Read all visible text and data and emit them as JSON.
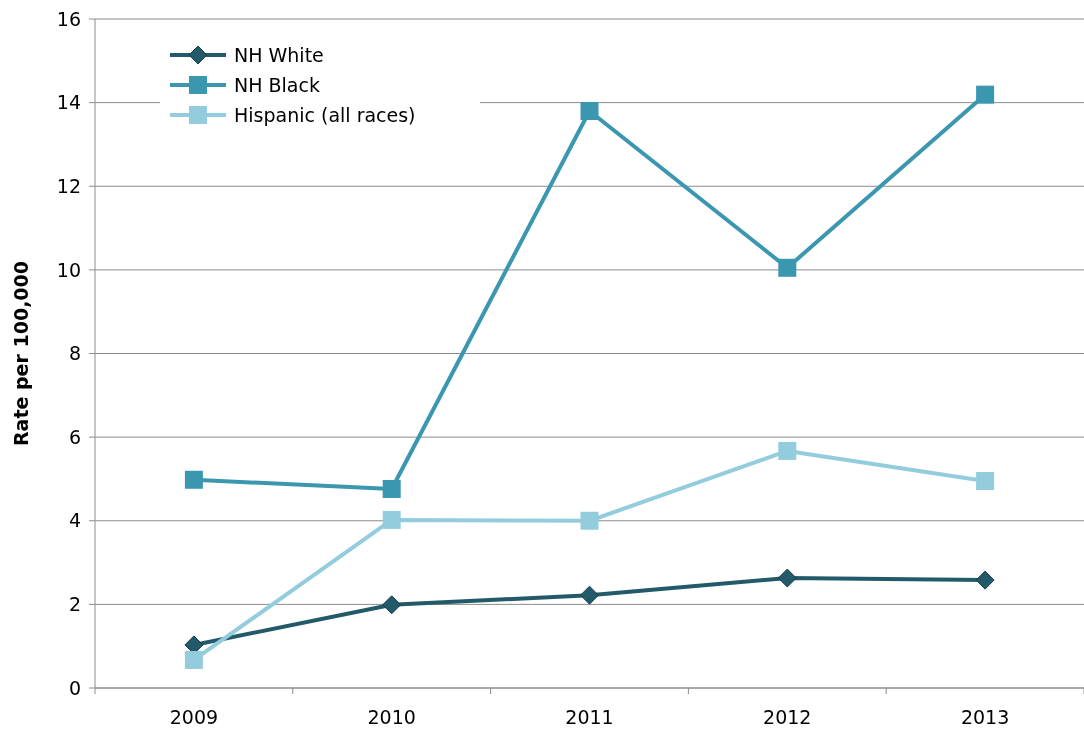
{
  "chart_data": {
    "type": "line",
    "ylabel": "Rate per 100,000",
    "categories": [
      "2009",
      "2010",
      "2011",
      "2012",
      "2013"
    ],
    "series": [
      {
        "name": "NH White",
        "color": "#235a6a",
        "values": [
          1.03,
          1.99,
          2.22,
          2.63,
          2.58
        ],
        "marker": "diamond"
      },
      {
        "name": "NH Black",
        "color": "#3b97b0",
        "values": [
          4.98,
          4.76,
          13.8,
          10.05,
          14.19
        ],
        "marker": "square"
      },
      {
        "name": "Hispanic (all races)",
        "color": "#93cddd",
        "values": [
          0.67,
          4.02,
          4.0,
          5.67,
          4.95
        ],
        "marker": "square"
      }
    ],
    "ylim": [
      0,
      16
    ],
    "yticks": [
      0,
      2,
      4,
      6,
      8,
      10,
      12,
      14,
      16
    ],
    "grid": "y",
    "legend": "top left",
    "line_style": "solid"
  }
}
